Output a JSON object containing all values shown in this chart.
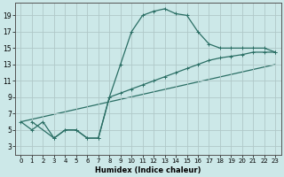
{
  "xlabel": "Humidex (Indice chaleur)",
  "background_color": "#cce8e8",
  "grid_color": "#b0c8c8",
  "line_color": "#2a6e64",
  "xlim": [
    -0.5,
    23.5
  ],
  "ylim": [
    2,
    20.5
  ],
  "xticks": [
    0,
    1,
    2,
    3,
    4,
    5,
    6,
    7,
    8,
    9,
    10,
    11,
    12,
    13,
    14,
    15,
    16,
    17,
    18,
    19,
    20,
    21,
    22,
    23
  ],
  "yticks": [
    3,
    5,
    7,
    9,
    11,
    13,
    15,
    17,
    19
  ],
  "curve1_x": [
    0,
    1,
    2,
    3,
    4,
    5,
    6,
    7,
    8,
    9,
    10,
    11,
    12,
    13,
    14,
    15,
    16,
    17,
    18,
    19,
    20,
    21,
    22,
    23
  ],
  "curve1_y": [
    6.0,
    5.0,
    6.0,
    4.0,
    5.0,
    5.0,
    4.0,
    4.0,
    9.0,
    13.0,
    17.0,
    19.0,
    19.5,
    19.8,
    19.2,
    19.0,
    17.0,
    15.5,
    15.0,
    15.0,
    15.0,
    15.0,
    15.0,
    14.5
  ],
  "curve2_x": [
    1,
    3,
    4,
    5,
    6,
    7,
    8,
    9,
    10,
    11,
    12,
    13,
    14,
    15,
    16,
    17,
    18,
    19,
    20,
    21,
    22,
    23
  ],
  "curve2_y": [
    6.0,
    4.0,
    5.0,
    5.0,
    4.0,
    4.0,
    9.0,
    9.5,
    10.0,
    10.5,
    11.0,
    11.5,
    12.0,
    12.5,
    13.0,
    13.5,
    13.8,
    14.0,
    14.2,
    14.5,
    14.5,
    14.5
  ],
  "curve3_x": [
    0,
    23
  ],
  "curve3_y": [
    6.0,
    13.0
  ]
}
